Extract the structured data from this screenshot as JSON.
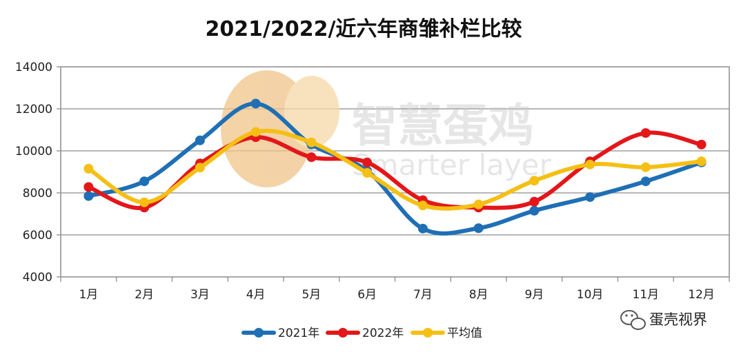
{
  "chart_data": {
    "type": "line",
    "title": "2021/2022/近六年商雏补栏比较",
    "categories": [
      "1月",
      "2月",
      "3月",
      "4月",
      "5月",
      "6月",
      "7月",
      "8月",
      "9月",
      "10月",
      "11月",
      "12月"
    ],
    "ylim": [
      4000,
      14000
    ],
    "yticks": [
      4000,
      6000,
      8000,
      10000,
      12000,
      14000
    ],
    "grid": true,
    "legend_position": "bottom",
    "smooth": true,
    "series": [
      {
        "name": "2021年",
        "color": "#1f6fb5",
        "values": [
          7850,
          8550,
          10500,
          12250,
          10300,
          9050,
          6300,
          6320,
          7150,
          7800,
          8550,
          9450
        ]
      },
      {
        "name": "2022年",
        "color": "#e3161a",
        "values": [
          8280,
          7300,
          9400,
          10650,
          9700,
          9450,
          7650,
          7300,
          7580,
          9500,
          10850,
          10300
        ]
      },
      {
        "name": "平均值",
        "color": "#f5bf14",
        "values": [
          9150,
          7550,
          9200,
          10900,
          10400,
          8950,
          7400,
          7450,
          8580,
          9350,
          9220,
          9500
        ]
      }
    ]
  },
  "watermark": {
    "text_cn": "智慧蛋鸡",
    "text_en": "Smarter layer",
    "logo_color": "#f0c48a"
  },
  "brand": {
    "text": "蛋壳视界",
    "icon": "wechat-icon"
  }
}
